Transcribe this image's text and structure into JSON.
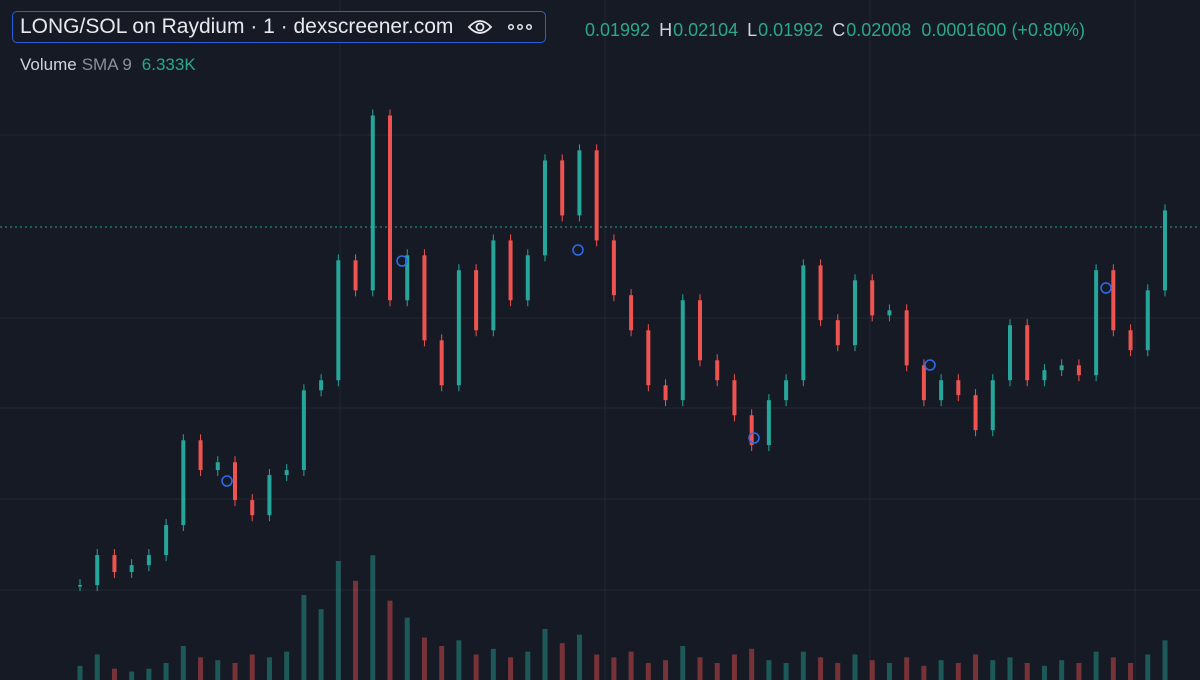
{
  "header": {
    "title": "LONG/SOL on Raydium · 1 · dexscreener.com"
  },
  "ohlc": {
    "open": "0.01992",
    "high_label": "H",
    "high": "0.02104",
    "low_label": "L",
    "low": "0.01992",
    "close_label": "C",
    "close": "0.02008",
    "change": "0.0001600",
    "change_pct": "(+0.80%)"
  },
  "volume_legend": {
    "label": "Volume",
    "sma": "SMA 9",
    "value": "6.333K"
  },
  "price": {
    "type": "candlestick",
    "up_color": "#26a69a",
    "down_color": "#ef5350",
    "ylim": [
      0.00033,
      0.03
    ],
    "values": [
      0.00447,
      0.00578,
      0.00504,
      0.00534,
      0.00578,
      0.00709,
      0.01079,
      0.00949,
      0.00983,
      0.00818,
      0.00752,
      0.00927,
      0.00949,
      0.01297,
      0.01341,
      0.01864,
      0.01733,
      0.02496,
      0.0169,
      0.01886,
      0.01515,
      0.01319,
      0.01821,
      0.01559,
      0.01951,
      0.0169,
      0.01886,
      0.023,
      0.0206,
      0.02344,
      0.01951,
      0.01712,
      0.01559,
      0.01319,
      0.01254,
      0.0169,
      0.01428,
      0.01341,
      0.01188,
      0.01058,
      0.01254,
      0.01341,
      0.01842,
      0.01603,
      0.01494,
      0.01777,
      0.01624,
      0.01646,
      0.01406,
      0.01254,
      0.01341,
      0.01276,
      0.01123,
      0.01341,
      0.01581,
      0.01341,
      0.01385,
      0.01406,
      0.01363,
      0.01821,
      0.01559,
      0.01472,
      0.01733,
      0.02082
    ]
  },
  "volume": {
    "type": "bar",
    "ylim": [
      0,
      60
    ],
    "values": [
      5,
      9,
      4,
      3,
      4,
      6,
      12,
      8,
      7,
      6,
      9,
      8,
      10,
      30,
      25,
      42,
      35,
      44,
      28,
      22,
      15,
      12,
      14,
      9,
      11,
      8,
      10,
      18,
      13,
      16,
      9,
      8,
      10,
      6,
      7,
      12,
      8,
      6,
      9,
      11,
      7,
      6,
      10,
      8,
      6,
      9,
      7,
      6,
      8,
      5,
      7,
      6,
      9,
      7,
      8,
      6,
      5,
      7,
      6,
      10,
      8,
      6,
      9,
      14
    ]
  }
}
